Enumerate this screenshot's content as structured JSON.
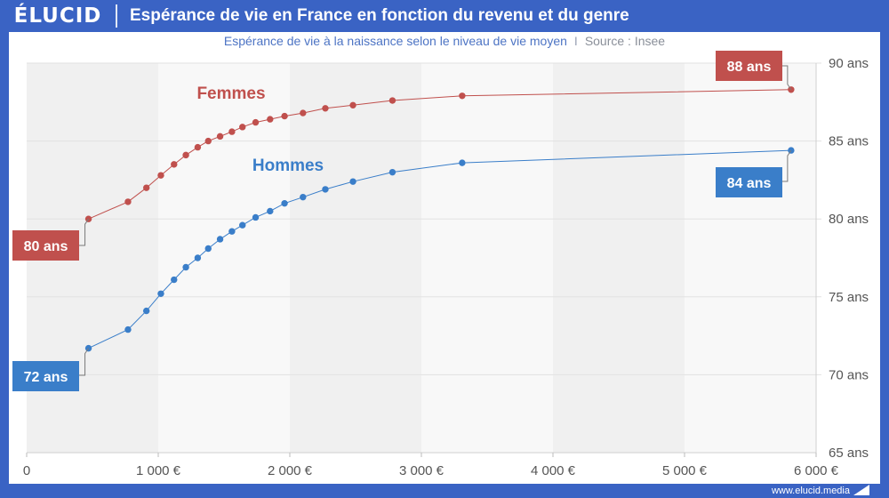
{
  "brand": {
    "logo": "ÉLUCID",
    "url": "www.elucid.media"
  },
  "header": {
    "title": "Espérance de vie en France en fonction du revenu et du genre"
  },
  "subtitle": {
    "main": "Espérance de vie à la naissance selon le niveau de vie moyen",
    "separator": "I",
    "source": "Source : Insee"
  },
  "colors": {
    "frame": "#3a63c4",
    "femmes": "#c0504d",
    "hommes": "#3a7ec9",
    "band_dark": "#f0f0f0",
    "band_light": "#f8f8f8"
  },
  "chart_data": {
    "type": "line",
    "xlim": [
      0,
      6000
    ],
    "ylim": [
      65,
      90
    ],
    "x_ticks": [
      0,
      1000,
      2000,
      3000,
      4000,
      5000,
      6000
    ],
    "x_tick_labels": [
      "0",
      "1 000 €",
      "2 000 €",
      "3 000 €",
      "4 000 €",
      "5 000 €",
      "6 000 €"
    ],
    "y_ticks": [
      65,
      70,
      75,
      80,
      85,
      90
    ],
    "y_tick_labels": [
      "65 ans",
      "70 ans",
      "75 ans",
      "80 ans",
      "85 ans",
      "90 ans"
    ],
    "grid": true,
    "series": [
      {
        "name": "Femmes",
        "color": "#c0504d",
        "x": [
          470,
          770,
          910,
          1020,
          1120,
          1210,
          1300,
          1380,
          1470,
          1560,
          1640,
          1740,
          1850,
          1960,
          2100,
          2270,
          2480,
          2780,
          3310,
          5810
        ],
        "y": [
          80.0,
          81.1,
          82.0,
          82.8,
          83.5,
          84.1,
          84.6,
          85.0,
          85.3,
          85.6,
          85.9,
          86.2,
          86.4,
          86.6,
          86.8,
          87.1,
          87.3,
          87.6,
          87.9,
          88.3
        ],
        "start_label": "80 ans",
        "end_label": "88 ans"
      },
      {
        "name": "Hommes",
        "color": "#3a7ec9",
        "x": [
          470,
          770,
          910,
          1020,
          1120,
          1210,
          1300,
          1380,
          1470,
          1560,
          1640,
          1740,
          1850,
          1960,
          2100,
          2270,
          2480,
          2780,
          3310,
          5810
        ],
        "y": [
          71.7,
          72.9,
          74.1,
          75.2,
          76.1,
          76.9,
          77.5,
          78.1,
          78.7,
          79.2,
          79.6,
          80.1,
          80.5,
          81.0,
          81.4,
          81.9,
          82.4,
          83.0,
          83.6,
          84.4
        ],
        "start_label": "72 ans",
        "end_label": "84 ans"
      }
    ]
  }
}
